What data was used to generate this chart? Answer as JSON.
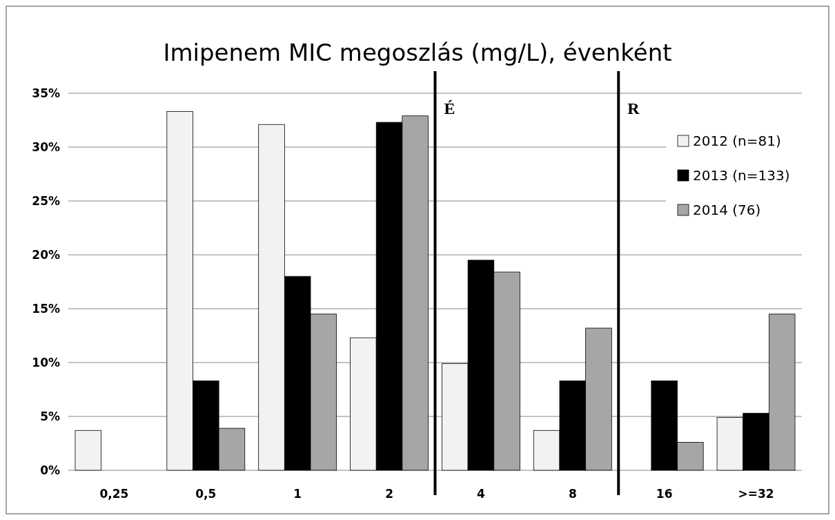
{
  "chart_data": {
    "type": "bar",
    "title": "Imipenem MIC megoszlás (mg/L), évenként",
    "categories": [
      "0,25",
      "0,5",
      "1",
      "2",
      "4",
      "8",
      "16",
      ">=32"
    ],
    "series": [
      {
        "name": "2012 (n=81)",
        "color": "#f2f2f2",
        "values": [
          3.7,
          33.3,
          32.1,
          12.3,
          9.9,
          3.7,
          0,
          4.9
        ]
      },
      {
        "name": "2013 (n=133)",
        "color": "#000000",
        "values": [
          0,
          8.3,
          18.0,
          32.3,
          19.5,
          8.3,
          8.3,
          5.3
        ]
      },
      {
        "name": "2014 (76)",
        "color": "#a6a6a6",
        "values": [
          0,
          3.9,
          14.5,
          32.9,
          18.4,
          13.2,
          2.6,
          14.5
        ]
      }
    ],
    "ylim": [
      0,
      35
    ],
    "yticks": [
      {
        "value": 0,
        "label": "0%"
      },
      {
        "value": 5,
        "label": "5%"
      },
      {
        "value": 10,
        "label": "10%"
      },
      {
        "value": 15,
        "label": "15%"
      },
      {
        "value": 20,
        "label": "20%"
      },
      {
        "value": 25,
        "label": "25%"
      },
      {
        "value": 30,
        "label": "30%"
      },
      {
        "value": 35,
        "label": "35%"
      }
    ],
    "annotations": [
      "É",
      "R"
    ],
    "grid": "y",
    "legend": "right"
  }
}
